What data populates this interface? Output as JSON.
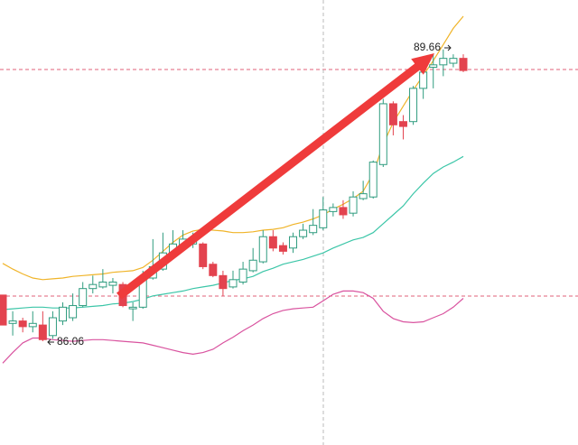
{
  "chart_data": {
    "type": "candlestick",
    "ylim": [
      84.78,
      90.27
    ],
    "up_color": "#2f9c7f",
    "down_color": "#e3434f",
    "open": [
      86.63,
      86.28,
      86.31,
      86.24,
      86.26,
      86.13,
      86.31,
      86.35,
      86.5,
      86.71,
      86.73,
      86.75,
      86.76,
      86.46,
      86.48,
      86.84,
      86.95,
      87.15,
      87.24,
      87.26,
      87.26,
      87.01,
      86.87,
      86.73,
      86.79,
      86.93,
      87.04,
      87.35,
      87.24,
      87.21,
      87.35,
      87.4,
      87.46,
      87.66,
      87.71,
      87.64,
      87.82,
      87.84,
      88.24,
      88.99,
      88.77,
      88.77,
      89.18,
      89.44,
      89.47,
      89.49,
      89.55
    ],
    "high": [
      86.63,
      86.43,
      86.35,
      86.43,
      86.43,
      86.43,
      86.54,
      86.65,
      86.79,
      86.87,
      86.95,
      86.84,
      86.79,
      86.54,
      86.93,
      87.32,
      87.4,
      87.43,
      87.43,
      87.4,
      87.28,
      87.04,
      86.93,
      86.93,
      87.04,
      87.21,
      87.43,
      87.43,
      87.28,
      87.4,
      87.51,
      87.69,
      87.84,
      87.76,
      87.8,
      87.91,
      88.04,
      88.29,
      89.05,
      89.02,
      88.85,
      89.21,
      89.49,
      89.6,
      89.66,
      89.6,
      89.6
    ],
    "low": [
      86.26,
      86.13,
      86.17,
      86.17,
      86.06,
      86.09,
      86.26,
      86.31,
      86.48,
      86.65,
      86.71,
      86.65,
      86.48,
      86.31,
      86.46,
      86.82,
      86.93,
      87.1,
      87.21,
      87.21,
      86.95,
      86.85,
      86.62,
      86.71,
      86.76,
      86.91,
      87.02,
      87.17,
      87.13,
      87.15,
      87.32,
      87.37,
      87.43,
      87.6,
      87.57,
      87.6,
      87.8,
      87.82,
      88.21,
      88.6,
      88.55,
      88.73,
      89.05,
      89.18,
      89.33,
      89.44,
      89.38
    ],
    "close": [
      86.26,
      86.31,
      86.24,
      86.28,
      86.08,
      86.35,
      86.48,
      86.5,
      86.71,
      86.76,
      86.79,
      86.79,
      86.5,
      86.48,
      86.84,
      86.98,
      87.15,
      87.26,
      87.32,
      87.32,
      86.98,
      86.87,
      86.71,
      86.82,
      86.95,
      87.06,
      87.35,
      87.21,
      87.17,
      87.35,
      87.43,
      87.49,
      87.68,
      87.71,
      87.62,
      87.84,
      87.88,
      88.27,
      88.99,
      88.73,
      88.71,
      89.18,
      89.38,
      89.47,
      89.55,
      89.55,
      89.4
    ],
    "lines": [
      {
        "color": "#f0b429",
        "values": [
          87.02,
          86.95,
          86.89,
          86.84,
          86.82,
          86.83,
          86.84,
          86.86,
          86.87,
          86.88,
          86.89,
          86.91,
          86.92,
          86.93,
          86.97,
          87.06,
          87.17,
          87.28,
          87.37,
          87.42,
          87.44,
          87.43,
          87.42,
          87.4,
          87.4,
          87.41,
          87.43,
          87.44,
          87.46,
          87.5,
          87.53,
          87.57,
          87.62,
          87.69,
          87.75,
          87.82,
          87.91,
          88.13,
          88.49,
          88.76,
          88.96,
          89.16,
          89.34,
          89.52,
          89.72,
          89.92,
          90.07
        ]
      },
      {
        "color": "#3cc6a8",
        "values": [
          86.45,
          86.46,
          86.47,
          86.48,
          86.48,
          86.47,
          86.47,
          86.47,
          86.48,
          86.49,
          86.5,
          86.52,
          86.53,
          86.55,
          86.58,
          86.62,
          86.64,
          86.66,
          86.68,
          86.71,
          86.73,
          86.75,
          86.78,
          86.81,
          86.83,
          86.86,
          86.92,
          86.96,
          87.01,
          87.04,
          87.07,
          87.11,
          87.15,
          87.21,
          87.26,
          87.31,
          87.34,
          87.4,
          87.51,
          87.62,
          87.73,
          87.88,
          88.01,
          88.13,
          88.21,
          88.27,
          88.34
        ]
      },
      {
        "color": "#d9539f",
        "values": [
          85.79,
          85.92,
          86.04,
          86.1,
          86.1,
          86.08,
          86.07,
          86.06,
          86.07,
          86.08,
          86.08,
          86.07,
          86.06,
          86.05,
          86.04,
          86.01,
          85.98,
          85.95,
          85.92,
          85.9,
          85.92,
          85.96,
          86.04,
          86.11,
          86.19,
          86.26,
          86.34,
          86.4,
          86.44,
          86.46,
          86.47,
          86.48,
          86.56,
          86.64,
          86.68,
          86.68,
          86.66,
          86.59,
          86.43,
          86.34,
          86.3,
          86.29,
          86.3,
          86.35,
          86.4,
          86.48,
          86.59
        ]
      }
    ]
  }
}
